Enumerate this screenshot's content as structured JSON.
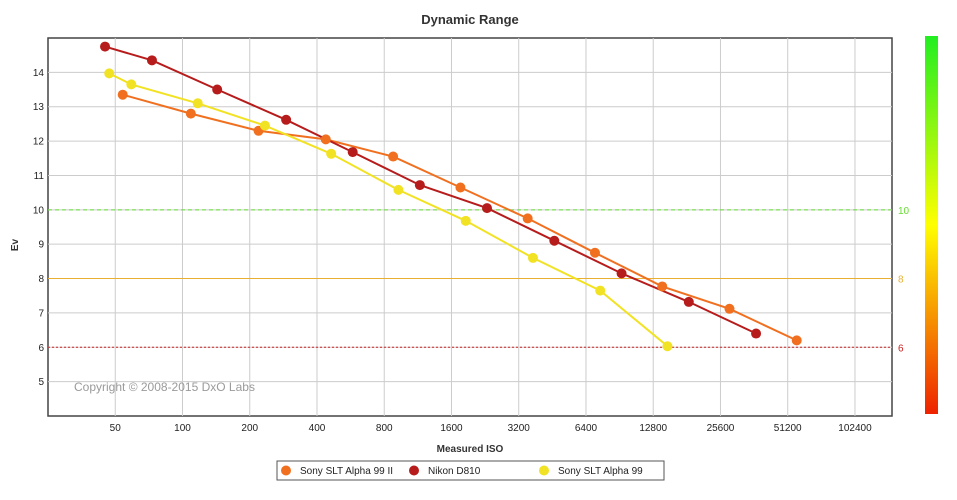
{
  "chart_data": {
    "type": "line",
    "title": "Dynamic Range",
    "xlabel": "Measured ISO",
    "ylabel": "Ev",
    "x_scale": "log2",
    "x_ticks": [
      "50",
      "100",
      "200",
      "400",
      "800",
      "1600",
      "3200",
      "6400",
      "12800",
      "25600",
      "51200",
      "102400"
    ],
    "xlim": [
      25,
      150000
    ],
    "ylim": [
      4,
      15
    ],
    "y_ticks": [
      5,
      6,
      7,
      8,
      9,
      10,
      11,
      12,
      13,
      14
    ],
    "grid": true,
    "legend_position": "bottom",
    "reference_lines": [
      {
        "value": 10,
        "label": "10",
        "color": "#66dd33",
        "style": "dashed"
      },
      {
        "value": 8,
        "label": "8",
        "color": "#e8b030",
        "style": "solid"
      },
      {
        "value": 6,
        "label": "6",
        "color": "#cc2222",
        "style": "dotted"
      }
    ],
    "color_scale": {
      "top": "#22ee22",
      "middle": "#ffff00",
      "bottom": "#ee2200"
    },
    "annotation": "Copyright © 2008-2015 DxO Labs",
    "series": [
      {
        "name": "Sony SLT Alpha 99 II",
        "color": "#f07020",
        "points": [
          [
            54,
            13.35
          ],
          [
            109,
            12.8
          ],
          [
            219,
            12.3
          ],
          [
            438,
            12.05
          ],
          [
            877,
            11.55
          ],
          [
            1755,
            10.65
          ],
          [
            3509,
            9.75
          ],
          [
            7022,
            8.75
          ],
          [
            14045,
            7.77
          ],
          [
            28089,
            7.12
          ],
          [
            56179,
            6.2
          ]
        ]
      },
      {
        "name": "Nikon D810",
        "color": "#b71c1c",
        "points": [
          [
            45,
            14.75
          ],
          [
            73,
            14.35
          ],
          [
            143,
            13.5
          ],
          [
            291,
            12.62
          ],
          [
            578,
            11.68
          ],
          [
            1155,
            10.72
          ],
          [
            2308,
            10.05
          ],
          [
            4618,
            9.1
          ],
          [
            9237,
            8.15
          ],
          [
            18473,
            7.32
          ],
          [
            36947,
            6.4
          ]
        ]
      },
      {
        "name": "Sony SLT Alpha 99",
        "color": "#f2e224",
        "points": [
          [
            47,
            13.97
          ],
          [
            59,
            13.65
          ],
          [
            117,
            13.1
          ],
          [
            234,
            12.45
          ],
          [
            463,
            11.63
          ],
          [
            926,
            10.58
          ],
          [
            1853,
            9.68
          ],
          [
            3706,
            8.6
          ],
          [
            7411,
            7.65
          ],
          [
            14822,
            6.03
          ]
        ]
      }
    ]
  }
}
